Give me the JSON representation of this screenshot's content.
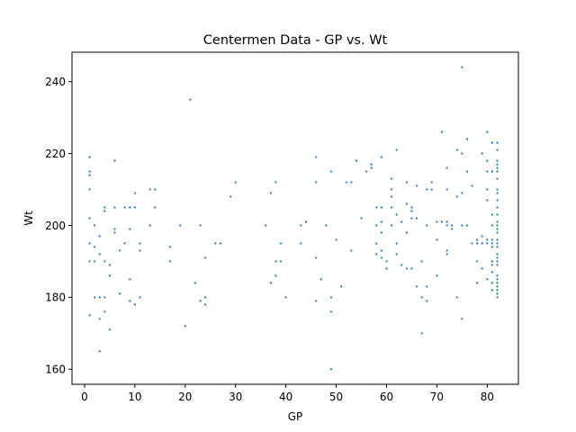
{
  "chart_data": {
    "type": "scatter",
    "title": "Centermen Data - GP vs. Wt",
    "xlabel": "GP",
    "ylabel": "Wt",
    "xlim": [
      -2.5,
      86.2
    ],
    "ylim": [
      155.8,
      248.2
    ],
    "xticks": [
      0,
      10,
      20,
      30,
      40,
      50,
      60,
      70,
      80
    ],
    "yticks": [
      160,
      180,
      200,
      220,
      240
    ],
    "grid": false,
    "legend": "none",
    "point_color": "#1f77b4",
    "points": [
      [
        1,
        219
      ],
      [
        1,
        215
      ],
      [
        1,
        214
      ],
      [
        1,
        210
      ],
      [
        1,
        202
      ],
      [
        1,
        195
      ],
      [
        1,
        190
      ],
      [
        1,
        175
      ],
      [
        2,
        200
      ],
      [
        2,
        194
      ],
      [
        2,
        190
      ],
      [
        2,
        180
      ],
      [
        3,
        197
      ],
      [
        3,
        192
      ],
      [
        3,
        180
      ],
      [
        3,
        174
      ],
      [
        3,
        165
      ],
      [
        4,
        205
      ],
      [
        4,
        204
      ],
      [
        4,
        190
      ],
      [
        4,
        180
      ],
      [
        4,
        176
      ],
      [
        5,
        189
      ],
      [
        5,
        186
      ],
      [
        5,
        171
      ],
      [
        6,
        218
      ],
      [
        6,
        205
      ],
      [
        6,
        199
      ],
      [
        6,
        198
      ],
      [
        7,
        193
      ],
      [
        7,
        181
      ],
      [
        8,
        205
      ],
      [
        8,
        195
      ],
      [
        9,
        205
      ],
      [
        9,
        199
      ],
      [
        9,
        185
      ],
      [
        9,
        179
      ],
      [
        10,
        209
      ],
      [
        10,
        205
      ],
      [
        10,
        178
      ],
      [
        11,
        195
      ],
      [
        11,
        193
      ],
      [
        11,
        180
      ],
      [
        13,
        210
      ],
      [
        13,
        200
      ],
      [
        14,
        210
      ],
      [
        14,
        205
      ],
      [
        17,
        194
      ],
      [
        17,
        190
      ],
      [
        19,
        200
      ],
      [
        20,
        172
      ],
      [
        21,
        235
      ],
      [
        22,
        184
      ],
      [
        23,
        200
      ],
      [
        23,
        179
      ],
      [
        24,
        191
      ],
      [
        24,
        180
      ],
      [
        24,
        178
      ],
      [
        26,
        195
      ],
      [
        27,
        195
      ],
      [
        29,
        208
      ],
      [
        30,
        212
      ],
      [
        36,
        200
      ],
      [
        37,
        209
      ],
      [
        37,
        184
      ],
      [
        38,
        212
      ],
      [
        38,
        190
      ],
      [
        38,
        186
      ],
      [
        39,
        195
      ],
      [
        39,
        190
      ],
      [
        40,
        180
      ],
      [
        43,
        200
      ],
      [
        43,
        195
      ],
      [
        44,
        201
      ],
      [
        46,
        219
      ],
      [
        46,
        212
      ],
      [
        46,
        191
      ],
      [
        46,
        179
      ],
      [
        47,
        185
      ],
      [
        48,
        200
      ],
      [
        49,
        215
      ],
      [
        49,
        180
      ],
      [
        49,
        176
      ],
      [
        49,
        160
      ],
      [
        50,
        196
      ],
      [
        51,
        183
      ],
      [
        52,
        212
      ],
      [
        53,
        212
      ],
      [
        53,
        193
      ],
      [
        54,
        218
      ],
      [
        55,
        202
      ],
      [
        56,
        215
      ],
      [
        57,
        217
      ],
      [
        57,
        216
      ],
      [
        58,
        205
      ],
      [
        58,
        200
      ],
      [
        58,
        195
      ],
      [
        58,
        192
      ],
      [
        59,
        219
      ],
      [
        59,
        205
      ],
      [
        59,
        201
      ],
      [
        59,
        198
      ],
      [
        59,
        193
      ],
      [
        59,
        191
      ],
      [
        60,
        190
      ],
      [
        60,
        188
      ],
      [
        61,
        213
      ],
      [
        61,
        210
      ],
      [
        61,
        208
      ],
      [
        61,
        205
      ],
      [
        61,
        200
      ],
      [
        62,
        221
      ],
      [
        62,
        203
      ],
      [
        62,
        195
      ],
      [
        62,
        192
      ],
      [
        63,
        201
      ],
      [
        63,
        189
      ],
      [
        64,
        212
      ],
      [
        64,
        206
      ],
      [
        64,
        198
      ],
      [
        64,
        188
      ],
      [
        65,
        205
      ],
      [
        65,
        204
      ],
      [
        65,
        202
      ],
      [
        65,
        188
      ],
      [
        66,
        211
      ],
      [
        66,
        202
      ],
      [
        66,
        183
      ],
      [
        67,
        190
      ],
      [
        67,
        180
      ],
      [
        67,
        170
      ],
      [
        68,
        210
      ],
      [
        68,
        200
      ],
      [
        68,
        183
      ],
      [
        68,
        179
      ],
      [
        69,
        212
      ],
      [
        69,
        210
      ],
      [
        70,
        201
      ],
      [
        70,
        196
      ],
      [
        70,
        186
      ],
      [
        71,
        226
      ],
      [
        71,
        201
      ],
      [
        72,
        216
      ],
      [
        72,
        210
      ],
      [
        72,
        201
      ],
      [
        72,
        200
      ],
      [
        72,
        193
      ],
      [
        72,
        192
      ],
      [
        73,
        200
      ],
      [
        73,
        199
      ],
      [
        74,
        221
      ],
      [
        74,
        208
      ],
      [
        74,
        180
      ],
      [
        75,
        244
      ],
      [
        75,
        220
      ],
      [
        75,
        209
      ],
      [
        75,
        200
      ],
      [
        75,
        174
      ],
      [
        76,
        224
      ],
      [
        76,
        215
      ],
      [
        76,
        200
      ],
      [
        77,
        211
      ],
      [
        77,
        195
      ],
      [
        78,
        195
      ],
      [
        78,
        190
      ],
      [
        78,
        184
      ],
      [
        78,
        196
      ],
      [
        79,
        197
      ],
      [
        79,
        195
      ],
      [
        79,
        188
      ],
      [
        79,
        220
      ],
      [
        79,
        195
      ],
      [
        80,
        226
      ],
      [
        80,
        218
      ],
      [
        80,
        215
      ],
      [
        80,
        210
      ],
      [
        80,
        207
      ],
      [
        80,
        196
      ],
      [
        80,
        195
      ],
      [
        80,
        185
      ],
      [
        81,
        223
      ],
      [
        81,
        215
      ],
      [
        81,
        203
      ],
      [
        81,
        200
      ],
      [
        81,
        196
      ],
      [
        81,
        195
      ],
      [
        81,
        194
      ],
      [
        81,
        190
      ],
      [
        81,
        189
      ],
      [
        81,
        187
      ],
      [
        81,
        184
      ],
      [
        81,
        182
      ],
      [
        82,
        223
      ],
      [
        82,
        221
      ],
      [
        82,
        218
      ],
      [
        82,
        217
      ],
      [
        82,
        216
      ],
      [
        82,
        215
      ],
      [
        82,
        213
      ],
      [
        82,
        210
      ],
      [
        82,
        209
      ],
      [
        82,
        207
      ],
      [
        82,
        205
      ],
      [
        82,
        203
      ],
      [
        82,
        201
      ],
      [
        82,
        200
      ],
      [
        82,
        199
      ],
      [
        82,
        198
      ],
      [
        82,
        196
      ],
      [
        82,
        195
      ],
      [
        82,
        194
      ],
      [
        82,
        192
      ],
      [
        82,
        191
      ],
      [
        82,
        190
      ],
      [
        82,
        189
      ],
      [
        82,
        186
      ],
      [
        82,
        185
      ],
      [
        82,
        184
      ],
      [
        82,
        183
      ],
      [
        82,
        182
      ],
      [
        82,
        181
      ],
      [
        82,
        180
      ]
    ]
  }
}
